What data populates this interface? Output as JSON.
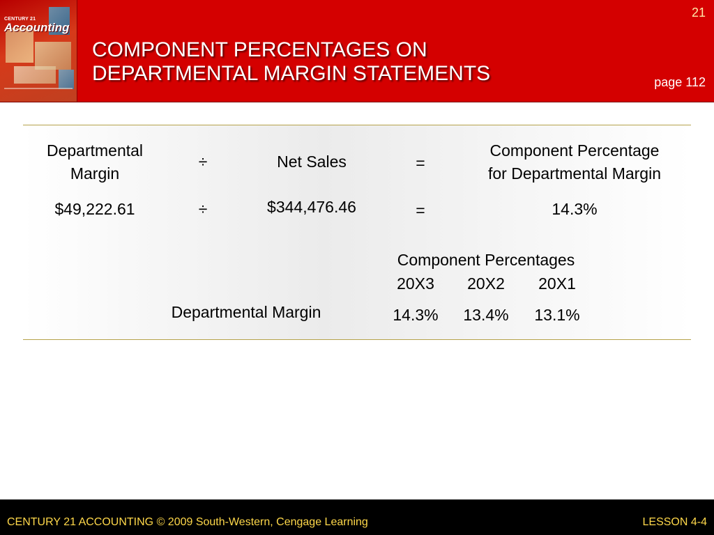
{
  "header": {
    "slide_number": "21",
    "title_line1": "COMPONENT PERCENTAGES ON",
    "title_line2": "DEPARTMENTAL MARGIN STATEMENTS",
    "page_ref": "page 112",
    "logo": {
      "top_text": "CENTURY 21",
      "word": "Accounting"
    }
  },
  "formula": {
    "head_margin_line1": "Departmental",
    "head_margin_line2": "Margin",
    "divide_symbol": "÷",
    "head_net_sales": "Net Sales",
    "equals_symbol": "=",
    "head_component_line1": "Component Percentage",
    "head_component_line2": "for Departmental Margin",
    "value_margin": "$49,222.61",
    "value_net_sales": "$344,476.46",
    "value_percentage": "14.3%"
  },
  "comparison": {
    "header": "Component Percentages",
    "years": [
      "20X3",
      "20X2",
      "20X1"
    ],
    "row_label": "Departmental Margin",
    "values": [
      "14.3%",
      "13.4%",
      "13.1%"
    ]
  },
  "footer": {
    "left": "CENTURY 21 ACCOUNTING © 2009 South-Western, Cengage Learning",
    "right": "LESSON  4-4"
  },
  "colors": {
    "header_bg": "#d40000",
    "footer_bg": "#000000",
    "footer_text": "#ffd84a",
    "rule": "#b5a24a"
  }
}
